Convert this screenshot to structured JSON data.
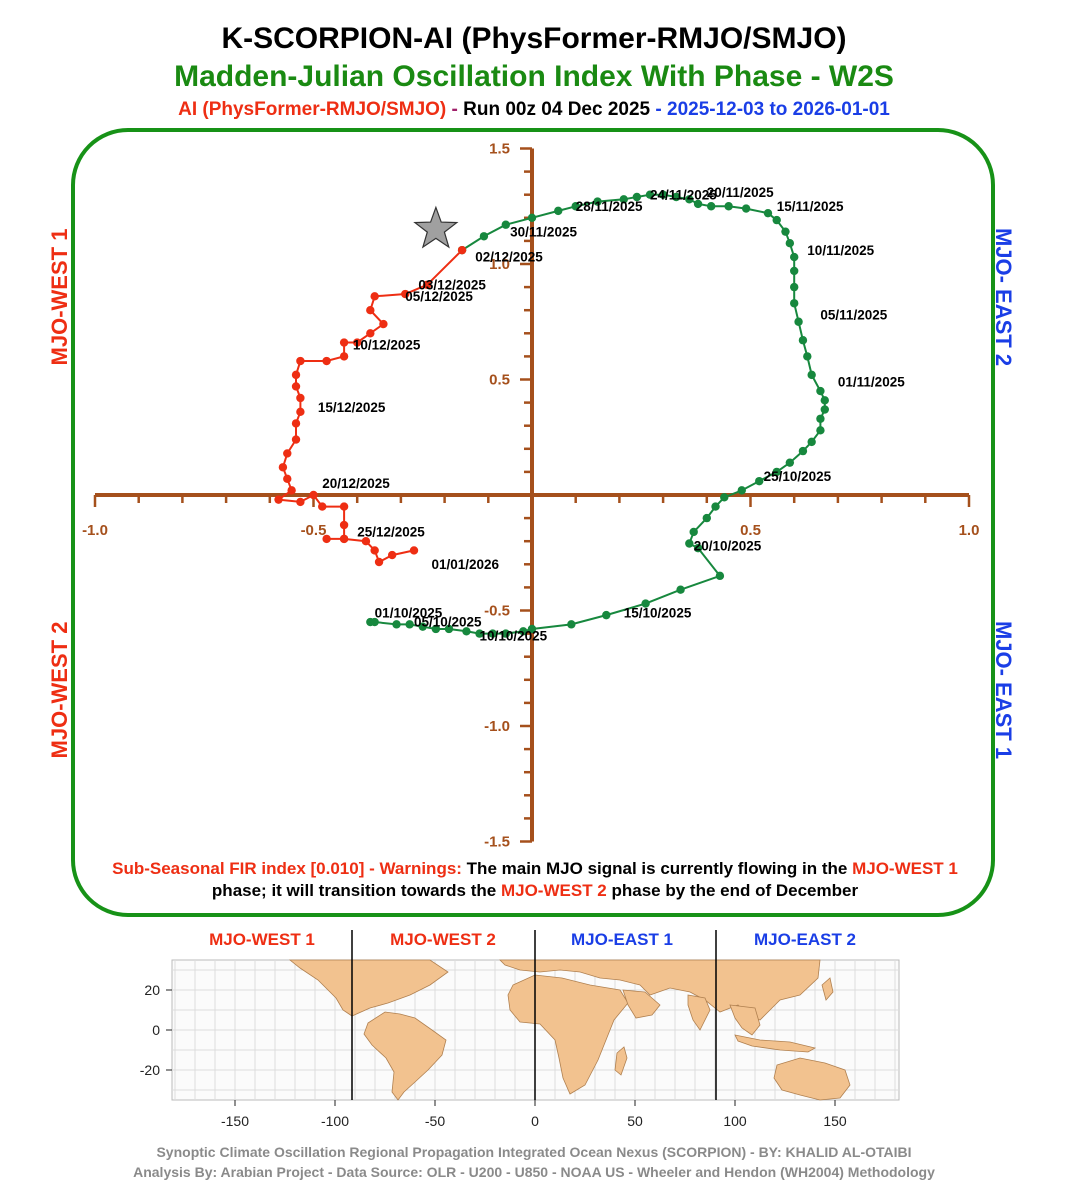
{
  "header": {
    "title": "K-SCORPION-AI (PhysFormer-RMJO/SMJO)",
    "subtitle": "Madden-Julian Oscillation Index With Phase - W2S",
    "model": "AI (PhysFormer-RMJO/SMJO)",
    "dash1": " - ",
    "run": "Run 00z 04 Dec 2025",
    "dash2": " - ",
    "period": "2025-12-03 to 2026-01-01"
  },
  "phase_labels": {
    "west1": "MJO-WEST 1",
    "west2": "MJO-WEST 2",
    "east1": "MJO- EAST 1",
    "east2": "MJO- EAST 2"
  },
  "warning": {
    "prefix": "Sub-Seasonal FIR index [0.010] - Warnings:",
    "text1": " The main MJO signal is currently flowing in the ",
    "phase1": "MJO-WEST 1",
    "text2": " phase; it will transition towards the ",
    "phase2": "MJO-WEST 2",
    "text3": " phase by the end of December"
  },
  "map": {
    "bands": [
      "MJO-WEST 1",
      "MJO-WEST 2",
      "MJO-EAST 1",
      "MJO-EAST 2"
    ],
    "xticks": [
      "-150",
      "-100",
      "-50",
      "0",
      "50",
      "100",
      "150"
    ],
    "yticks": [
      "20",
      "0",
      "-20"
    ]
  },
  "footer": {
    "line1": "Synoptic Climate Oscillation Regional Propagation Integrated Ocean Nexus (SCORPION) -  BY: KHALID AL-OTAIBI",
    "line2": "Analysis By: Arabian Project - Data Source:    OLR - U200 - U850 - NOAA US - Wheeler and Hendon (WH2004) Methodology"
  },
  "colors": {
    "observed": "#17883e",
    "forecast": "#ee2e13",
    "axis": "#a5501c",
    "frame": "#179217"
  },
  "chart_data": {
    "type": "line",
    "xlim": [
      -1.0,
      1.0
    ],
    "ylim": [
      -1.5,
      1.5
    ],
    "x_ticklabels": [
      "-1.0",
      "-0.5",
      "0.5",
      "1.0"
    ],
    "y_ticklabels": [
      "1.5",
      "1.0",
      "0.5",
      "-0.5",
      "-1.0",
      "-1.5"
    ],
    "series": [
      {
        "role": "observed",
        "color": "#17883e",
        "points": [
          [
            -0.37,
            -0.55
          ],
          [
            -0.36,
            -0.55
          ],
          [
            -0.31,
            -0.56
          ],
          [
            -0.28,
            -0.56
          ],
          [
            -0.25,
            -0.57
          ],
          [
            -0.22,
            -0.58
          ],
          [
            -0.19,
            -0.58
          ],
          [
            -0.15,
            -0.59
          ],
          [
            -0.12,
            -0.6
          ],
          [
            -0.09,
            -0.6
          ],
          [
            -0.06,
            -0.6
          ],
          [
            -0.02,
            -0.59
          ],
          [
            0.0,
            -0.58
          ],
          [
            0.09,
            -0.56
          ],
          [
            0.17,
            -0.52
          ],
          [
            0.26,
            -0.47
          ],
          [
            0.34,
            -0.41
          ],
          [
            0.43,
            -0.35
          ],
          [
            0.38,
            -0.23
          ],
          [
            0.36,
            -0.21
          ],
          [
            0.37,
            -0.16
          ],
          [
            0.4,
            -0.1
          ],
          [
            0.42,
            -0.05
          ],
          [
            0.44,
            -0.01
          ],
          [
            0.48,
            0.02
          ],
          [
            0.52,
            0.06
          ],
          [
            0.56,
            0.1
          ],
          [
            0.59,
            0.14
          ],
          [
            0.62,
            0.19
          ],
          [
            0.64,
            0.23
          ],
          [
            0.66,
            0.28
          ],
          [
            0.66,
            0.33
          ],
          [
            0.67,
            0.37
          ],
          [
            0.67,
            0.41
          ],
          [
            0.66,
            0.45
          ],
          [
            0.64,
            0.52
          ],
          [
            0.63,
            0.6
          ],
          [
            0.62,
            0.67
          ],
          [
            0.61,
            0.75
          ],
          [
            0.6,
            0.83
          ],
          [
            0.6,
            0.9
          ],
          [
            0.6,
            0.97
          ],
          [
            0.6,
            1.03
          ],
          [
            0.59,
            1.09
          ],
          [
            0.58,
            1.14
          ],
          [
            0.56,
            1.19
          ],
          [
            0.54,
            1.22
          ],
          [
            0.49,
            1.24
          ],
          [
            0.45,
            1.25
          ],
          [
            0.41,
            1.25
          ],
          [
            0.38,
            1.26
          ],
          [
            0.36,
            1.28
          ],
          [
            0.33,
            1.29
          ],
          [
            0.3,
            1.3
          ],
          [
            0.27,
            1.3
          ],
          [
            0.24,
            1.29
          ],
          [
            0.21,
            1.28
          ],
          [
            0.15,
            1.27
          ],
          [
            0.1,
            1.25
          ],
          [
            0.06,
            1.23
          ],
          [
            0.0,
            1.2
          ],
          [
            -0.06,
            1.17
          ],
          [
            -0.11,
            1.12
          ],
          [
            -0.16,
            1.06
          ]
        ]
      },
      {
        "role": "forecast",
        "color": "#ee2e13",
        "points": [
          [
            -0.16,
            1.06
          ],
          [
            -0.24,
            0.91
          ],
          [
            -0.29,
            0.87
          ],
          [
            -0.36,
            0.86
          ],
          [
            -0.37,
            0.8
          ],
          [
            -0.34,
            0.74
          ],
          [
            -0.37,
            0.7
          ],
          [
            -0.4,
            0.66
          ],
          [
            -0.43,
            0.66
          ],
          [
            -0.43,
            0.6
          ],
          [
            -0.47,
            0.58
          ],
          [
            -0.53,
            0.58
          ],
          [
            -0.54,
            0.52
          ],
          [
            -0.54,
            0.47
          ],
          [
            -0.53,
            0.42
          ],
          [
            -0.53,
            0.36
          ],
          [
            -0.54,
            0.31
          ],
          [
            -0.54,
            0.24
          ],
          [
            -0.56,
            0.18
          ],
          [
            -0.57,
            0.12
          ],
          [
            -0.56,
            0.07
          ],
          [
            -0.55,
            0.02
          ],
          [
            -0.58,
            -0.02
          ],
          [
            -0.53,
            -0.03
          ],
          [
            -0.5,
            0.0
          ],
          [
            -0.48,
            -0.05
          ],
          [
            -0.43,
            -0.05
          ],
          [
            -0.43,
            -0.13
          ],
          [
            -0.43,
            -0.19
          ],
          [
            -0.47,
            -0.19
          ],
          [
            -0.43,
            -0.19
          ],
          [
            -0.38,
            -0.2
          ],
          [
            -0.36,
            -0.24
          ],
          [
            -0.35,
            -0.29
          ],
          [
            -0.32,
            -0.26
          ],
          [
            -0.27,
            -0.24
          ]
        ]
      }
    ],
    "date_labels": [
      {
        "text": "01/10/2025",
        "x": -0.36,
        "y": -0.53
      },
      {
        "text": "05/10/2025",
        "x": -0.27,
        "y": -0.57
      },
      {
        "text": "10/10/2025",
        "x": -0.12,
        "y": -0.63
      },
      {
        "text": "15/10/2025",
        "x": 0.21,
        "y": -0.53
      },
      {
        "text": "20/10/2025",
        "x": 0.37,
        "y": -0.24
      },
      {
        "text": "25/10/2025",
        "x": 0.53,
        "y": 0.06
      },
      {
        "text": "01/11/2025",
        "x": 0.7,
        "y": 0.47
      },
      {
        "text": "05/11/2025",
        "x": 0.66,
        "y": 0.76
      },
      {
        "text": "10/11/2025",
        "x": 0.63,
        "y": 1.04
      },
      {
        "text": "15/11/2025",
        "x": 0.56,
        "y": 1.23
      },
      {
        "text": "20/11/2025",
        "x": 0.4,
        "y": 1.29
      },
      {
        "text": "24/11/2025",
        "x": 0.27,
        "y": 1.28
      },
      {
        "text": "28/11/2025",
        "x": 0.1,
        "y": 1.23
      },
      {
        "text": "30/11/2025",
        "x": -0.05,
        "y": 1.12
      },
      {
        "text": "02/12/2025",
        "x": -0.13,
        "y": 1.01
      },
      {
        "text": "03/12/2025",
        "x": -0.26,
        "y": 0.89
      },
      {
        "text": "05/12/2025",
        "x": -0.29,
        "y": 0.84
      },
      {
        "text": "10/12/2025",
        "x": -0.41,
        "y": 0.63
      },
      {
        "text": "15/12/2025",
        "x": -0.49,
        "y": 0.36
      },
      {
        "text": "20/12/2025",
        "x": -0.48,
        "y": 0.03
      },
      {
        "text": "25/12/2025",
        "x": -0.4,
        "y": -0.18
      },
      {
        "text": "01/01/2026",
        "x": -0.23,
        "y": -0.32
      }
    ],
    "marker_star": {
      "x": -0.22,
      "y": 1.15
    }
  }
}
